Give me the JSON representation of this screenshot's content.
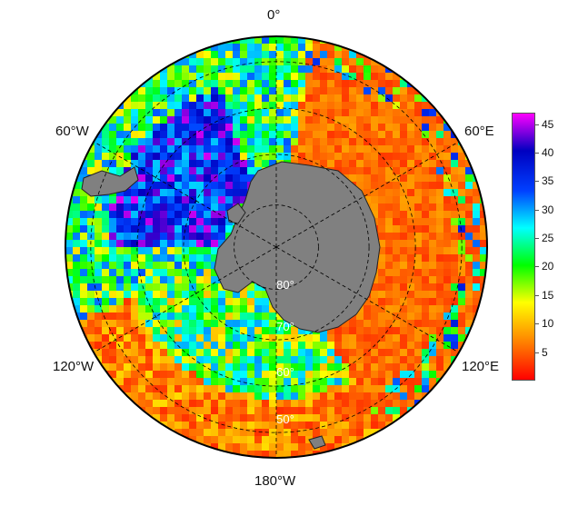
{
  "longitude_labels": {
    "top": "0°",
    "upper_left": "60°W",
    "upper_right": "60°E",
    "lower_left": "120°W",
    "lower_right": "120°E",
    "bottom": "180°W"
  },
  "latitude_labels": [
    "80°",
    "70°",
    "60°",
    "50°"
  ],
  "projection": "south-polar-stereographic",
  "graticule": "dashed",
  "land_color": "#808080",
  "colorbar": {
    "min": 0,
    "max": 47,
    "ticks": [
      "5",
      "10",
      "15",
      "20",
      "25",
      "30",
      "35",
      "40",
      "45"
    ],
    "colormap": [
      "#ff0000",
      "#ff8000",
      "#ffff00",
      "#00ff00",
      "#00ffff",
      "#0040ff",
      "#0000c0",
      "#ff00ff"
    ]
  }
}
